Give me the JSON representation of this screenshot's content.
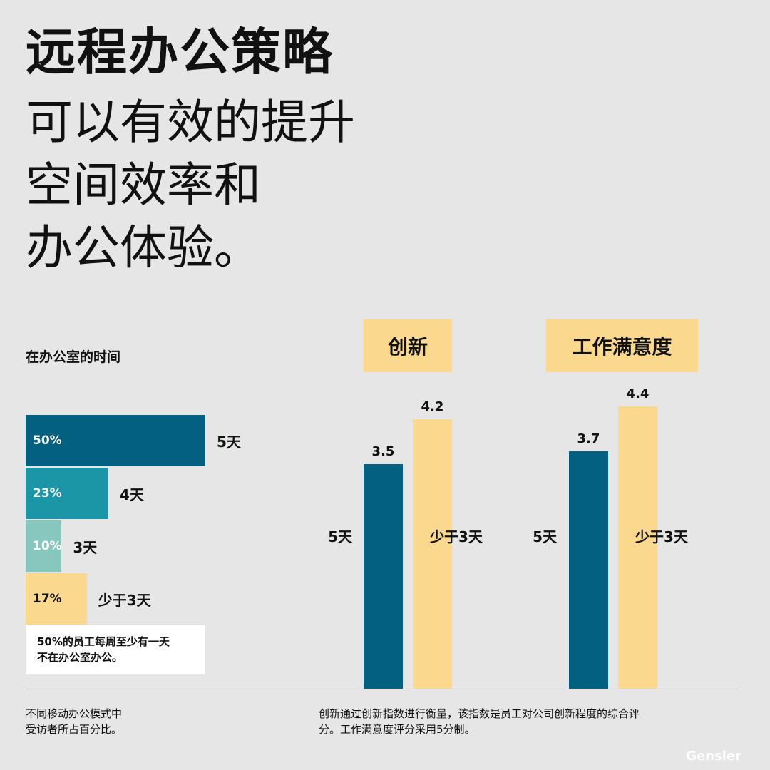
{
  "headline": {
    "bold": "远程办公策略",
    "lines": [
      "可以有效的提升",
      "空间效率和",
      "办公体验。"
    ]
  },
  "office_time": {
    "title": "在办公室的时间",
    "note": [
      "50%的员工每周至少有一天",
      "不在办公室办公。"
    ]
  },
  "chart_data": [
    {
      "type": "bar",
      "orientation": "horizontal",
      "title": "在办公室的时间",
      "categories": [
        "5天",
        "4天",
        "3天",
        "少于3天"
      ],
      "values": [
        50,
        23,
        10,
        17
      ],
      "value_labels": [
        "50%",
        "23%",
        "10%",
        "17%"
      ],
      "colors": [
        "#03607f",
        "#1b96a6",
        "#86c7be",
        "#fad98e"
      ],
      "xlim": [
        0,
        100
      ]
    },
    {
      "type": "bar",
      "title": "创新",
      "categories": [
        "5天",
        "少于3天"
      ],
      "values": [
        3.5,
        4.2
      ],
      "colors": [
        "#03607f",
        "#fad98e"
      ],
      "ylim": [
        0,
        5
      ]
    },
    {
      "type": "bar",
      "title": "工作满意度",
      "categories": [
        "5天",
        "少于3天"
      ],
      "values": [
        3.7,
        4.4
      ],
      "colors": [
        "#03607f",
        "#fad98e"
      ],
      "ylim": [
        0,
        5
      ]
    }
  ],
  "footnotes": {
    "left": [
      "不同移动办公模式中",
      "受访者所占百分比。"
    ],
    "right": [
      "创新通过创新指数进行衡量，该指数是员工对公司创新程度的综合评",
      "分。工作满意度评分采用5分制。"
    ]
  },
  "brand": "Gensler"
}
